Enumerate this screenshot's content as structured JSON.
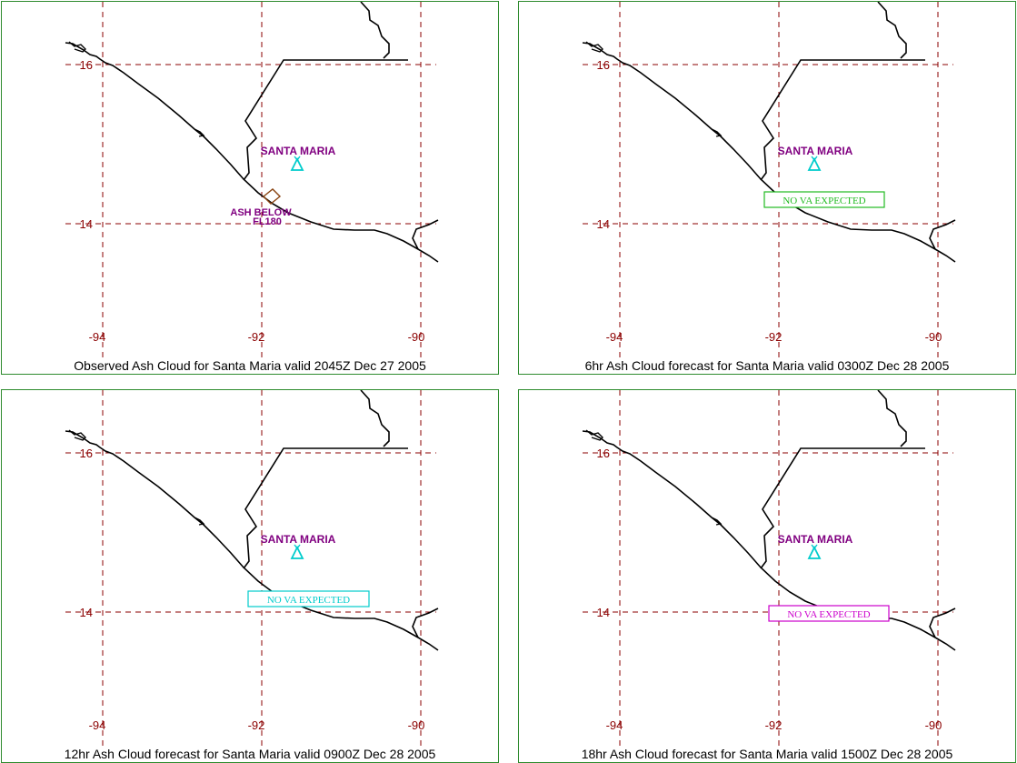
{
  "panels": [
    {
      "title": "Observed Ash Cloud for Santa  Maria valid 2045Z Dec 27 2005",
      "volcano_name": "SANTA MARIA",
      "annotation": {
        "type": "ash",
        "line1": "ASH BELOW",
        "line2": "FL180",
        "color": "#8b4513"
      }
    },
    {
      "title": "6hr Ash Cloud forecast for Santa  Maria valid 0300Z Dec 28 2005",
      "volcano_name": "SANTA MARIA",
      "annotation": {
        "type": "nva",
        "text": "NO  VA  EXPECTED",
        "color": "#22bb22"
      }
    },
    {
      "title": "12hr Ash Cloud forecast for Santa  Maria valid 0900Z Dec 28 2005",
      "volcano_name": "SANTA MARIA",
      "annotation": {
        "type": "nva",
        "text": "NO  VA  EXPECTED",
        "color": "#00cccc"
      }
    },
    {
      "title": "18hr Ash Cloud forecast for Santa  Maria valid 1500Z Dec 28 2005",
      "volcano_name": "SANTA MARIA",
      "annotation": {
        "type": "nva",
        "text": "NO  VA  EXPECTED",
        "color": "#cc00cc"
      }
    }
  ],
  "map": {
    "lon_ticks": [
      "-94",
      "-92",
      "-90"
    ],
    "lat_ticks": [
      "16",
      "14"
    ],
    "grid_color": "#8b0000",
    "volcano_color": "#00cccc",
    "volcano_label_color": "#800080",
    "coast_color": "#000000"
  }
}
